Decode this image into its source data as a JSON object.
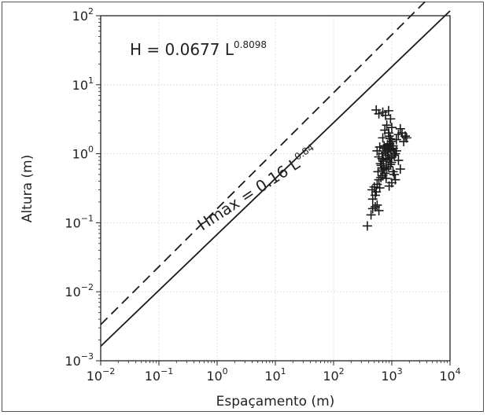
{
  "chart_data": {
    "type": "scatter",
    "xlabel": "Espaçamento (m)",
    "ylabel": "Altura (m)",
    "xscale": "log",
    "yscale": "log",
    "xlim": [
      0.01,
      10000
    ],
    "ylim": [
      0.001,
      100
    ],
    "grid": true,
    "x_ticks": [
      {
        "base": "10",
        "exp": "−2",
        "value": 0.01
      },
      {
        "base": "10",
        "exp": "−1",
        "value": 0.1
      },
      {
        "base": "10",
        "exp": "0",
        "value": 1
      },
      {
        "base": "10",
        "exp": "1",
        "value": 10
      },
      {
        "base": "10",
        "exp": "2",
        "value": 100
      },
      {
        "base": "10",
        "exp": "3",
        "value": 1000
      },
      {
        "base": "10",
        "exp": "4",
        "value": 10000
      }
    ],
    "y_ticks": [
      {
        "base": "10",
        "exp": "−3",
        "value": 0.001
      },
      {
        "base": "10",
        "exp": "−2",
        "value": 0.01
      },
      {
        "base": "10",
        "exp": "−1",
        "value": 0.1
      },
      {
        "base": "10",
        "exp": "0",
        "value": 1
      },
      {
        "base": "10",
        "exp": "1",
        "value": 10
      },
      {
        "base": "10",
        "exp": "2",
        "value": 100
      }
    ],
    "annotations": [
      {
        "text": "H = 0.0677 L",
        "exp": "0.8098"
      },
      {
        "text": "Hmax = 0.16 L",
        "exp": "0.84"
      }
    ],
    "fit_lines": [
      {
        "style": "solid",
        "coef": 0.0677,
        "power": 0.8098
      },
      {
        "style": "dashed",
        "coef": 0.16,
        "power": 0.84
      }
    ],
    "series": [
      {
        "marker": "+",
        "points": [
          [
            380,
            0.09
          ],
          [
            440,
            0.13
          ],
          [
            470,
            0.16
          ],
          [
            520,
            0.17
          ],
          [
            560,
            0.18
          ],
          [
            600,
            0.15
          ],
          [
            470,
            0.22
          ],
          [
            520,
            0.25
          ],
          [
            460,
            0.3
          ],
          [
            500,
            0.33
          ],
          [
            560,
            0.36
          ],
          [
            620,
            0.32
          ],
          [
            540,
            0.28
          ],
          [
            600,
            0.42
          ],
          [
            650,
            0.45
          ],
          [
            700,
            0.48
          ],
          [
            760,
            0.52
          ],
          [
            580,
            0.55
          ],
          [
            680,
            0.58
          ],
          [
            820,
            0.6
          ],
          [
            880,
            0.65
          ],
          [
            950,
            0.7
          ],
          [
            640,
            0.72
          ],
          [
            720,
            0.78
          ],
          [
            800,
            0.82
          ],
          [
            900,
            0.86
          ],
          [
            1000,
            0.9
          ],
          [
            1100,
            0.95
          ],
          [
            700,
            1.0
          ],
          [
            780,
            1.05
          ],
          [
            860,
            1.1
          ],
          [
            960,
            1.15
          ],
          [
            1060,
            1.2
          ],
          [
            620,
            1.25
          ],
          [
            740,
            1.3
          ],
          [
            840,
            1.35
          ],
          [
            920,
            1.4
          ],
          [
            1000,
            1.5
          ],
          [
            1200,
            1.6
          ],
          [
            700,
            1.7
          ],
          [
            900,
            1.8
          ],
          [
            1300,
            1.9
          ],
          [
            1500,
            2.0
          ],
          [
            1700,
            1.8
          ],
          [
            1600,
            1.5
          ],
          [
            1800,
            1.7
          ],
          [
            1400,
            2.3
          ],
          [
            1200,
            1.1
          ],
          [
            1300,
            0.8
          ],
          [
            1400,
            0.6
          ],
          [
            1100,
            0.5
          ],
          [
            1000,
            0.38
          ],
          [
            1150,
            0.42
          ],
          [
            900,
            0.34
          ],
          [
            800,
            0.44
          ],
          [
            720,
            0.62
          ],
          [
            660,
            0.68
          ],
          [
            600,
            0.9
          ],
          [
            560,
            1.1
          ],
          [
            600,
            3.8
          ],
          [
            700,
            4.0
          ],
          [
            780,
            3.6
          ],
          [
            880,
            4.2
          ],
          [
            950,
            3.2
          ],
          [
            540,
            4.3
          ],
          [
            820,
            2.6
          ],
          [
            1000,
            2.4
          ],
          [
            760,
            2.2
          ],
          [
            880,
            2.0
          ],
          [
            950,
            1.65
          ],
          [
            1050,
            1.3
          ],
          [
            1150,
            1.0
          ],
          [
            980,
            0.75
          ],
          [
            1050,
            0.55
          ],
          [
            850,
            0.95
          ],
          [
            760,
            1.2
          ],
          [
            680,
            0.85
          ],
          [
            900,
            1.25
          ]
        ]
      }
    ]
  }
}
